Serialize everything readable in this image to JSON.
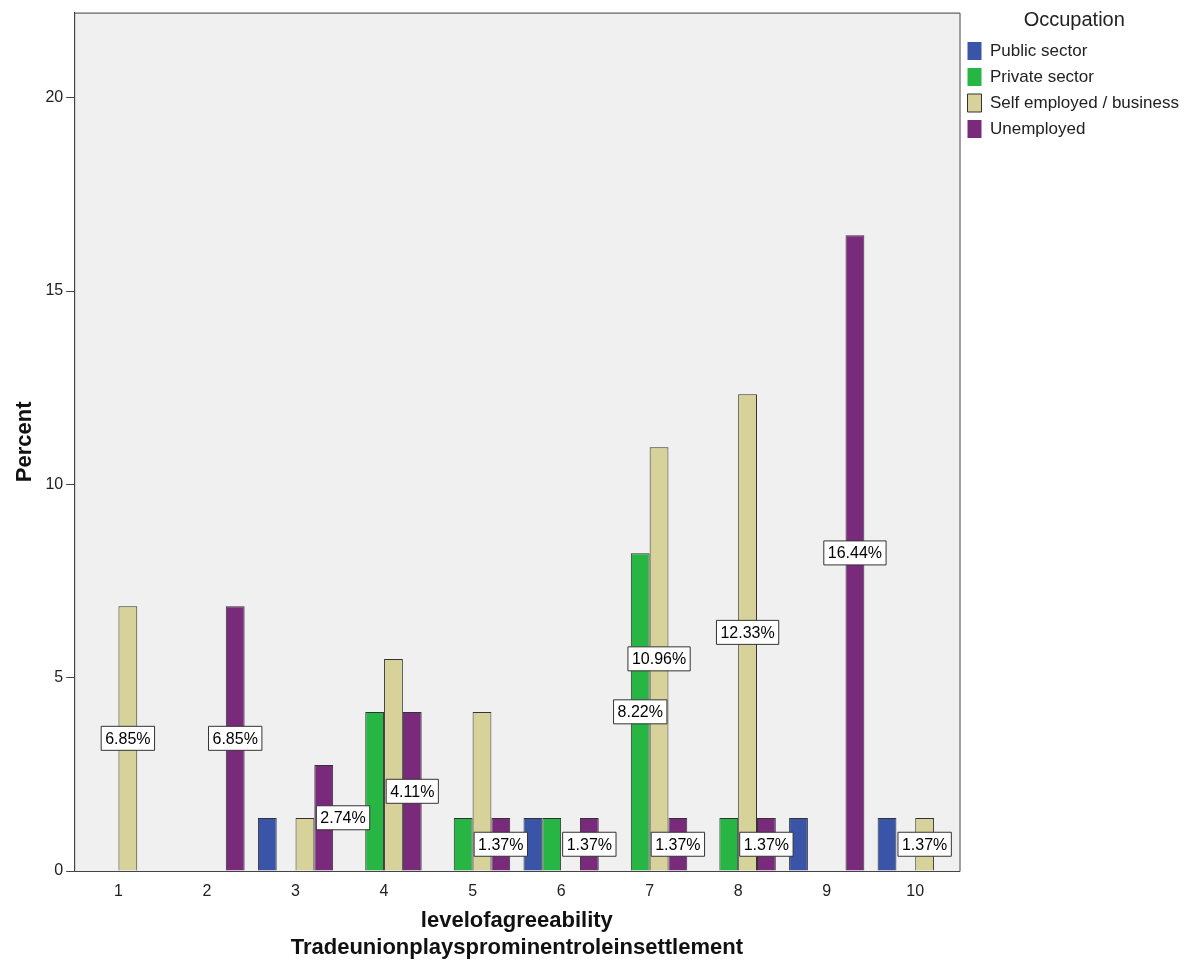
{
  "chart_data": {
    "type": "bar",
    "xlabel": "levelofagreeability\nTradeunionplaysprominentroleinsettlement",
    "ylabel": "Percent",
    "legend_title": "Occupation",
    "legend": "top right",
    "grid": false,
    "categories": [
      "1",
      "2",
      "3",
      "4",
      "5",
      "6",
      "7",
      "8",
      "9",
      "10"
    ],
    "ylim": [
      0,
      22.2
    ],
    "yticks": [
      0,
      5,
      10,
      15,
      20
    ],
    "series": [
      {
        "name": "Public sector",
        "color": "#3a55a8",
        "values": [
          0,
          0,
          1.37,
          0,
          0,
          1.37,
          0,
          0,
          1.37,
          1.37
        ],
        "value_labels": [
          null,
          null,
          null,
          null,
          null,
          null,
          null,
          null,
          null,
          null
        ]
      },
      {
        "name": "Private sector",
        "color": "#27b544",
        "values": [
          0,
          0,
          0,
          4.11,
          1.37,
          1.37,
          8.22,
          1.37,
          0,
          0
        ],
        "value_labels": [
          null,
          null,
          null,
          null,
          null,
          null,
          "8.22%",
          null,
          null,
          null
        ]
      },
      {
        "name": "Self employed / business",
        "color": "#d6d29a",
        "values": [
          6.85,
          0,
          1.37,
          5.48,
          4.11,
          0,
          10.96,
          12.33,
          0,
          1.37
        ],
        "value_labels": [
          "6.85%",
          null,
          null,
          null,
          null,
          null,
          "10.96%",
          "12.33%",
          null,
          "1.37%"
        ]
      },
      {
        "name": "Unemployed",
        "color": "#7a2a7a",
        "values": [
          0,
          6.85,
          2.74,
          4.11,
          1.37,
          1.37,
          1.37,
          1.37,
          16.44,
          0
        ],
        "value_labels": [
          null,
          "6.85%",
          "2.74%",
          "4.11%",
          "1.37%",
          "1.37%",
          "1.37%",
          "1.37%",
          "16.44%",
          null
        ]
      }
    ]
  }
}
